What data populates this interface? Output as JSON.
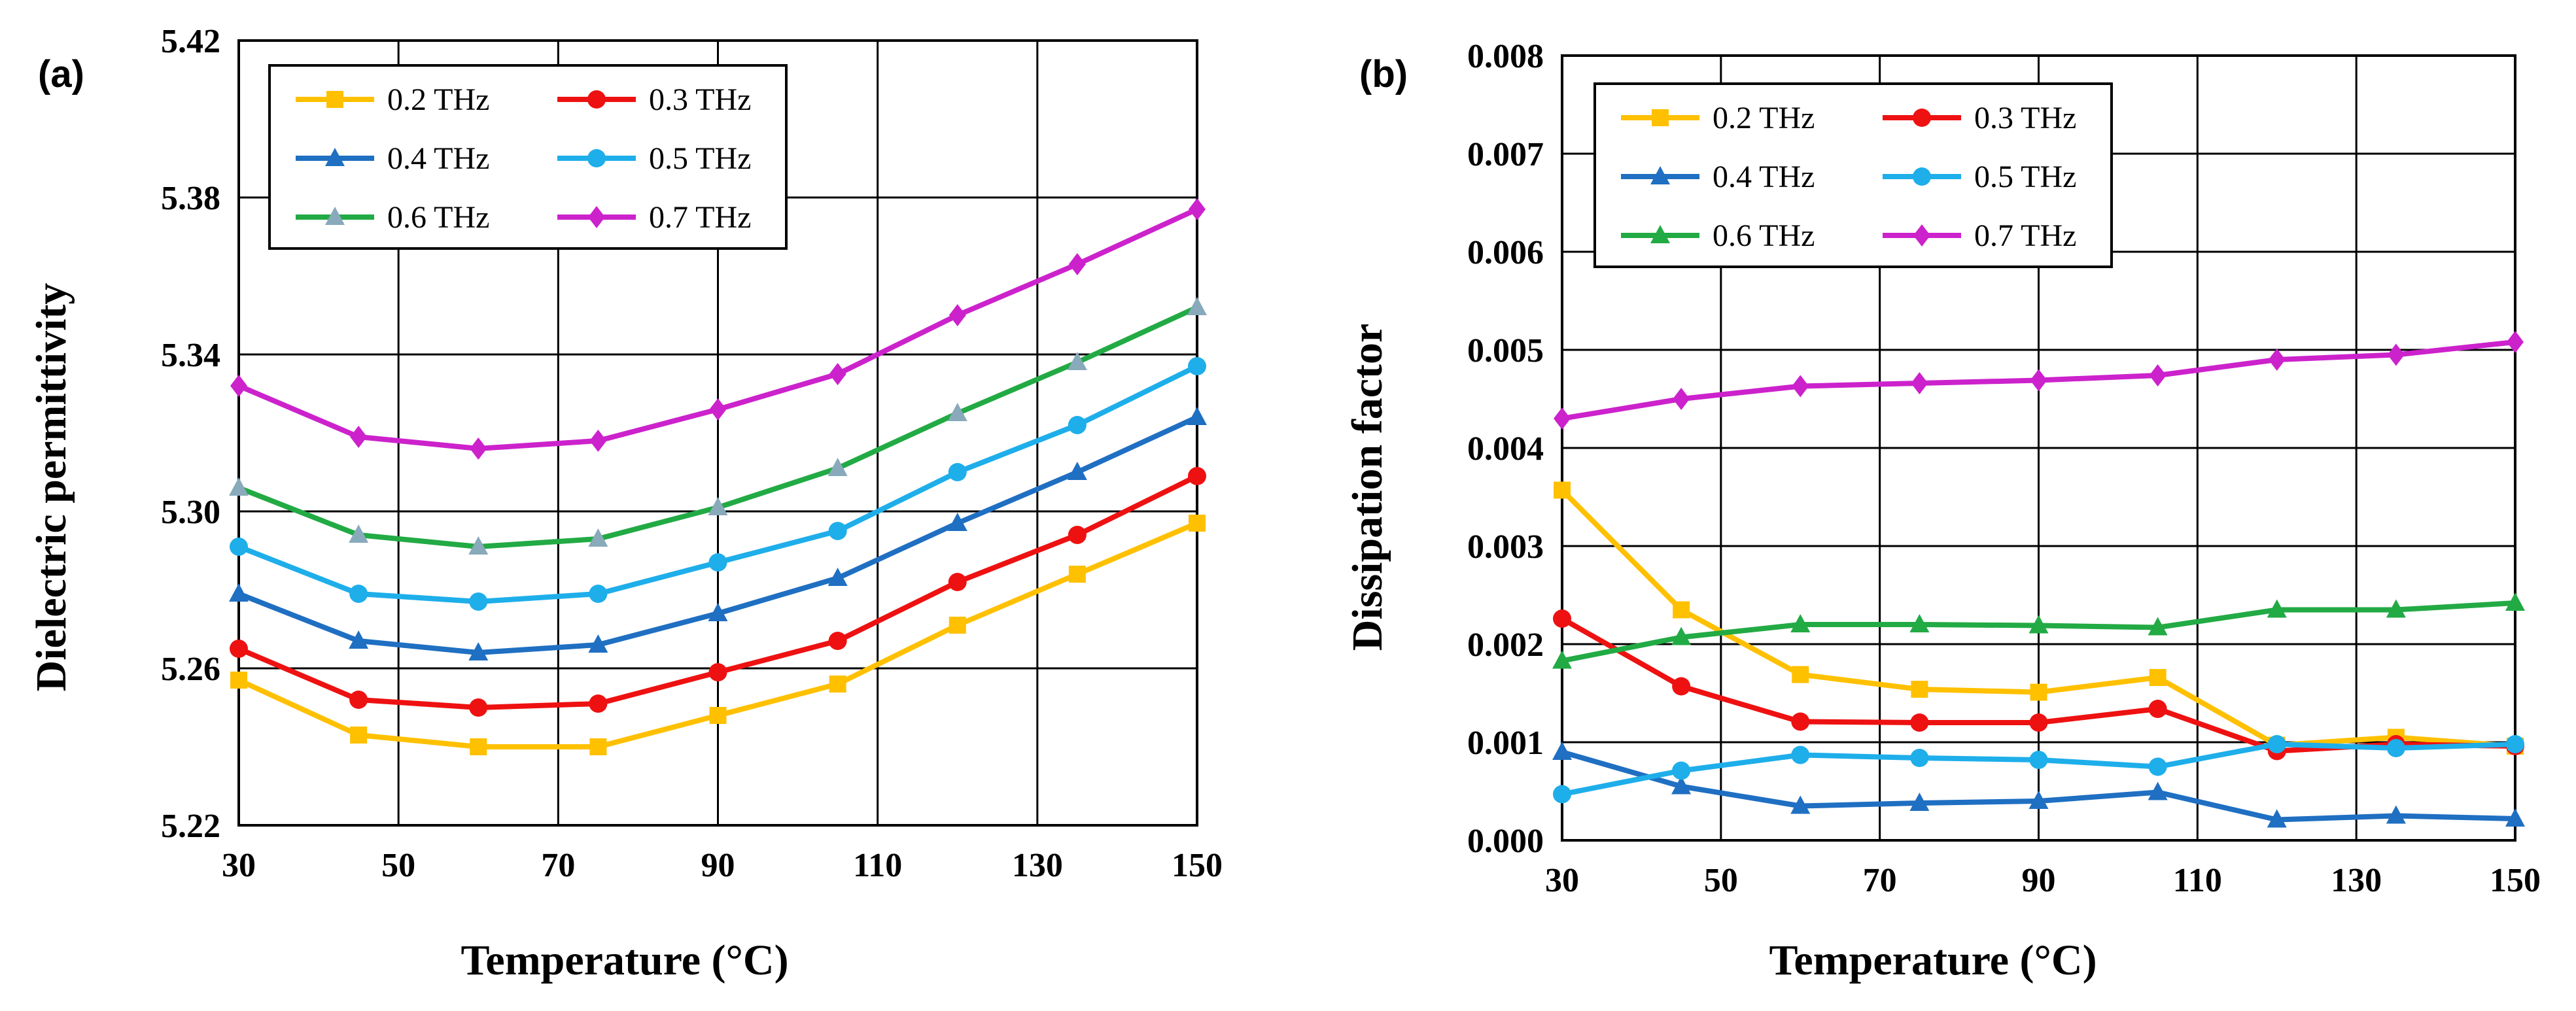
{
  "figure_title": "",
  "chart_data": [
    {
      "type": "line",
      "panel_label": "(a)",
      "title": "",
      "xlabel": "Temperature (°C)",
      "ylabel": "Dielectric permittivity",
      "x": [
        30,
        45,
        60,
        75,
        90,
        105,
        120,
        135,
        150
      ],
      "xlim": [
        30,
        150
      ],
      "ylim": [
        5.22,
        5.42
      ],
      "xticks": [
        "30",
        "50",
        "70",
        "90",
        "110",
        "130",
        "150"
      ],
      "yticks": [
        "5.22",
        "5.26",
        "5.30",
        "5.34",
        "5.38",
        "5.42"
      ],
      "grid": true,
      "legend_position": "top-left",
      "series": [
        {
          "name": "0.2 THz",
          "color": "#FFC000",
          "marker": "square",
          "values": [
            5.257,
            5.243,
            5.24,
            5.24,
            5.248,
            5.256,
            5.271,
            5.284,
            5.297
          ]
        },
        {
          "name": "0.3 THz",
          "color": "#EE1111",
          "marker": "circle",
          "values": [
            5.265,
            5.252,
            5.25,
            5.251,
            5.259,
            5.267,
            5.282,
            5.294,
            5.309
          ]
        },
        {
          "name": "0.4 THz",
          "color": "#1F6FC2",
          "marker": "triangle",
          "values": [
            5.279,
            5.267,
            5.264,
            5.266,
            5.274,
            5.283,
            5.297,
            5.31,
            5.324
          ]
        },
        {
          "name": "0.5 THz",
          "color": "#1EAEEA",
          "marker": "circle",
          "values": [
            5.291,
            5.279,
            5.277,
            5.279,
            5.287,
            5.295,
            5.31,
            5.322,
            5.337
          ]
        },
        {
          "name": "0.6 THz",
          "color": "#22AA44",
          "marker": "triangle",
          "marker_color": "#88AABB",
          "values": [
            5.306,
            5.294,
            5.291,
            5.293,
            5.301,
            5.311,
            5.325,
            5.338,
            5.352
          ]
        },
        {
          "name": "0.7 THz",
          "color": "#CC22CC",
          "marker": "diamond",
          "values": [
            5.332,
            5.319,
            5.316,
            5.318,
            5.326,
            5.335,
            5.35,
            5.363,
            5.377
          ]
        }
      ]
    },
    {
      "type": "line",
      "panel_label": "(b)",
      "title": "",
      "xlabel": "Temperature (°C)",
      "ylabel": "Dissipation  factor",
      "x": [
        30,
        45,
        60,
        75,
        90,
        105,
        120,
        135,
        150
      ],
      "xlim": [
        30,
        150
      ],
      "ylim": [
        0.0,
        0.008
      ],
      "xticks": [
        "30",
        "50",
        "70",
        "90",
        "110",
        "130",
        "150"
      ],
      "yticks": [
        "0.000",
        "0.001",
        "0.002",
        "0.003",
        "0.004",
        "0.005",
        "0.006",
        "0.007",
        "0.008"
      ],
      "grid": true,
      "legend_position": "top-left",
      "series": [
        {
          "name": "0.2 THz",
          "color": "#FFC000",
          "marker": "square",
          "values": [
            0.00357,
            0.00235,
            0.00169,
            0.00154,
            0.00151,
            0.00166,
            0.00097,
            0.00105,
            0.00096
          ]
        },
        {
          "name": "0.3 THz",
          "color": "#EE1111",
          "marker": "circle",
          "values": [
            0.00226,
            0.00157,
            0.00121,
            0.0012,
            0.0012,
            0.00134,
            0.00091,
            0.00098,
            0.00096
          ]
        },
        {
          "name": "0.4 THz",
          "color": "#1F6FC2",
          "marker": "triangle",
          "values": [
            0.0009,
            0.00055,
            0.00035,
            0.00038,
            0.0004,
            0.00049,
            0.00021,
            0.00025,
            0.00022
          ]
        },
        {
          "name": "0.5 THz",
          "color": "#1EAEEA",
          "marker": "circle",
          "values": [
            0.00047,
            0.00071,
            0.00087,
            0.00084,
            0.00082,
            0.00075,
            0.00098,
            0.00094,
            0.00098
          ]
        },
        {
          "name": "0.6 THz",
          "color": "#22AA44",
          "marker": "triangle",
          "values": [
            0.00183,
            0.00207,
            0.0022,
            0.0022,
            0.00219,
            0.00217,
            0.00235,
            0.00235,
            0.00242
          ]
        },
        {
          "name": "0.7 THz",
          "color": "#CC22CC",
          "marker": "diamond",
          "values": [
            0.0043,
            0.0045,
            0.00463,
            0.00466,
            0.00469,
            0.00474,
            0.0049,
            0.00495,
            0.00508
          ]
        }
      ]
    }
  ]
}
